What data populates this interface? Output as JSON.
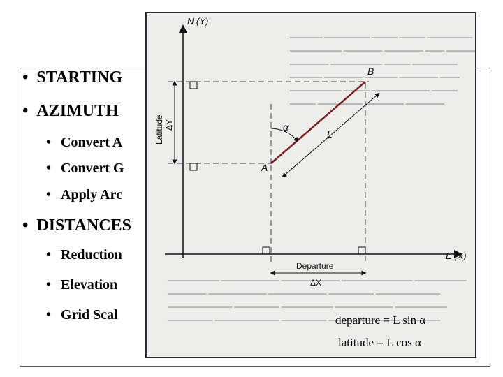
{
  "slide": {
    "bullets": [
      {
        "level": 1,
        "text": "STARTING"
      },
      {
        "level": 1,
        "text": "AZIMUTH"
      },
      {
        "level": 2,
        "text": "Convert A"
      },
      {
        "level": 2,
        "text": "Convert G"
      },
      {
        "level": 2,
        "text": "Apply Arc"
      },
      {
        "level": 1,
        "text": "DISTANCES"
      },
      {
        "level": 2,
        "text": "Reduction"
      },
      {
        "level": 2,
        "text": "Elevation"
      },
      {
        "level": 2,
        "text": "Grid Scal"
      }
    ],
    "bullet_glyph": "•"
  },
  "figure": {
    "y_axis_label": "N (Y)",
    "x_axis_label": "E (X)",
    "point_a": "A",
    "point_b": "B",
    "latitude_label": "Latitude",
    "delta_y": "ΔY",
    "departure_label": "Departure",
    "delta_x": "ΔX",
    "length_label": "L",
    "angle_label": "α",
    "formula_departure": "departure = L sin α",
    "formula_latitude": "latitude = L cos α",
    "colors": {
      "line": "#7a1f1f",
      "axes": "#111111",
      "background": "#ededec"
    }
  }
}
